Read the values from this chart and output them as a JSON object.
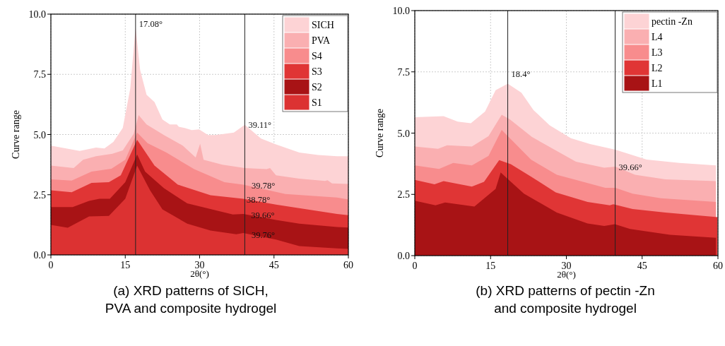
{
  "chart_data": [
    {
      "type": "area",
      "title": "(a) XRD patterns of SICH,\nPVA and composite hydrogel",
      "xlabel": "2θ(°)",
      "ylabel": "Curve range",
      "xlim": [
        0,
        60
      ],
      "ylim": [
        0,
        10
      ],
      "xticks": [
        0,
        15,
        30,
        45,
        60
      ],
      "yticks": [
        {
          "value": 0,
          "label": "0.0"
        },
        {
          "value": 2.5,
          "label": "2.5"
        },
        {
          "value": 5,
          "label": "5.0"
        },
        {
          "value": 7.5,
          "label": "7.5"
        },
        {
          "value": 10,
          "label": "10.0"
        }
      ],
      "grid": true,
      "legend": "top right",
      "ref_lines": [
        {
          "axis": "x",
          "value": 17.08
        },
        {
          "axis": "x",
          "value": 39.11
        }
      ],
      "annotations": [
        {
          "text": "17.08°",
          "x": 17.08,
          "y": 9.6
        },
        {
          "text": "39.11°",
          "x": 39.11,
          "y": 5.4
        },
        {
          "text": "39.78°",
          "x": 39.78,
          "y": 2.87
        },
        {
          "text": "38.78°",
          "x": 38.78,
          "y": 2.28
        },
        {
          "text": "39.66°",
          "x": 39.66,
          "y": 1.65
        },
        {
          "text": "39.76°",
          "x": 39.76,
          "y": 0.81
        }
      ],
      "series": [
        {
          "name": "SICH",
          "color": "#fdd3d5",
          "x": [
            0,
            5.8,
            9.1,
            10.8,
            12.6,
            14.5,
            16,
            17.08,
            18,
            19.3,
            20.9,
            22.5,
            24,
            25.4,
            25.8,
            27,
            28.4,
            29.9,
            31.7,
            33.2,
            36.9,
            39.11,
            42.4,
            45.4,
            50.1,
            53.9,
            57.7,
            60
          ],
          "values": [
            4.54,
            4.32,
            4.46,
            4.42,
            4.69,
            5.27,
            6.9,
            9.44,
            7.68,
            6.65,
            6.35,
            5.62,
            5.42,
            5.42,
            5.32,
            5.27,
            5.18,
            5.21,
            4.98,
            4.98,
            5.08,
            5.4,
            4.83,
            4.59,
            4.25,
            4.15,
            4.1,
            4.1
          ]
        },
        {
          "name": "PVA",
          "color": "#faafb1",
          "x": [
            0,
            4.6,
            6.5,
            9.1,
            12.4,
            14.5,
            16.7,
            17.7,
            19.3,
            22.8,
            26.6,
            29.2,
            30.1,
            30.8,
            34.6,
            39.1,
            43.5,
            44.2,
            45.4,
            50.1,
            55.3,
            55.8,
            56.7,
            60
          ],
          "values": [
            3.71,
            3.61,
            3.95,
            4.1,
            4.2,
            4.34,
            5.03,
            5.81,
            5.42,
            4.98,
            4.54,
            4.05,
            4.62,
            3.95,
            3.75,
            3.61,
            3.56,
            3.61,
            3.31,
            3.17,
            3.07,
            3.1,
            2.97,
            2.95
          ]
        },
        {
          "name": "S4",
          "color": "#f88c8d",
          "x": [
            0,
            4.2,
            8.2,
            12.2,
            15,
            17.4,
            19.5,
            23.3,
            28.9,
            35,
            38.8,
            47.3,
            57.7,
            60
          ],
          "values": [
            3.14,
            3.09,
            3.46,
            3.58,
            3.95,
            5.08,
            4.64,
            4.25,
            3.56,
            3.02,
            2.92,
            2.53,
            2.38,
            2.3
          ]
        },
        {
          "name": "S3",
          "color": "#e03535",
          "x": [
            0,
            4.2,
            8.2,
            11.7,
            14.1,
            17.4,
            20.9,
            25.6,
            32.2,
            38.8,
            45.4,
            57.7,
            60
          ],
          "values": [
            2.68,
            2.6,
            2.99,
            3.02,
            3.31,
            4.78,
            3.71,
            2.92,
            2.48,
            2.33,
            2.09,
            1.7,
            1.65
          ]
        },
        {
          "name": "S2",
          "color": "#a81315",
          "x": [
            0,
            4.4,
            7.7,
            9.8,
            11.9,
            15,
            17.4,
            19,
            22.8,
            27.5,
            36.7,
            38.8,
            45.4,
            50.1,
            57.7,
            60
          ],
          "values": [
            1.99,
            1.99,
            2.24,
            2.33,
            2.33,
            3.02,
            4.17,
            3.46,
            2.77,
            2.14,
            1.68,
            1.7,
            1.45,
            1.3,
            1.16,
            1.14
          ]
        },
        {
          "name": "S1",
          "color": "#dc3232",
          "x": [
            0,
            3.4,
            7.7,
            11.7,
            15,
            17.4,
            20,
            22.5,
            27.5,
            32.2,
            37.4,
            38.8,
            45.4,
            50.1,
            57.7,
            60
          ],
          "values": [
            1.25,
            1.13,
            1.6,
            1.62,
            2.33,
            3.71,
            2.68,
            1.89,
            1.3,
            1.01,
            0.86,
            0.91,
            0.64,
            0.37,
            0.27,
            0.25
          ]
        }
      ]
    },
    {
      "type": "area",
      "title": "(b) XRD patterns of pectin -Zn\nand composite hydrogel",
      "xlabel": "2θ(°)",
      "ylabel": "Curve range",
      "xlim": [
        0,
        60
      ],
      "ylim": [
        0,
        10
      ],
      "xticks": [
        0,
        15,
        30,
        45,
        60
      ],
      "yticks": [
        {
          "value": 0,
          "label": "0.0"
        },
        {
          "value": 2.5,
          "label": "2.5"
        },
        {
          "value": 5,
          "label": "5.0"
        },
        {
          "value": 7.5,
          "label": "7.5"
        },
        {
          "value": 10,
          "label": "10.0"
        }
      ],
      "grid": true,
      "legend": "top right",
      "ref_lines": [
        {
          "axis": "x",
          "value": 18.4
        },
        {
          "axis": "x",
          "value": 39.66
        }
      ],
      "annotations": [
        {
          "text": "18.4°",
          "x": 18.4,
          "y": 7.4
        },
        {
          "text": "39.66°",
          "x": 39.66,
          "y": 3.6
        }
      ],
      "series": [
        {
          "name": "pectin -Zn",
          "color": "#fdd3d5",
          "x": [
            0,
            5.7,
            8.5,
            11.1,
            13.9,
            16,
            18.4,
            21.1,
            23.5,
            26.7,
            30.9,
            34.7,
            39.7,
            45.9,
            52.4,
            59.6
          ],
          "values": [
            5.65,
            5.69,
            5.47,
            5.4,
            5.88,
            6.75,
            7.02,
            6.65,
            5.94,
            5.32,
            4.79,
            4.55,
            4.32,
            3.92,
            3.78,
            3.68
          ]
        },
        {
          "name": "L4",
          "color": "#faafb1",
          "x": [
            0,
            4.6,
            6.4,
            11.3,
            14.6,
            17.2,
            18.8,
            23.2,
            31.9,
            37.5,
            39.7,
            43.6,
            49.6,
            59.6
          ],
          "values": [
            4.45,
            4.36,
            4.5,
            4.45,
            4.88,
            5.75,
            5.56,
            4.84,
            3.83,
            3.59,
            3.63,
            3.3,
            3.11,
            3.04
          ]
        },
        {
          "name": "L3",
          "color": "#f88c8d",
          "x": [
            0,
            4.8,
            7.6,
            11.3,
            14.6,
            17.2,
            23,
            28.1,
            37.7,
            39.7,
            43.1,
            48.7,
            59.6
          ],
          "values": [
            3.68,
            3.54,
            3.78,
            3.68,
            4.07,
            5.13,
            3.92,
            3.3,
            2.77,
            2.77,
            2.53,
            2.34,
            2.19
          ]
        },
        {
          "name": "L2",
          "color": "#e03535",
          "x": [
            0,
            3.9,
            5.7,
            11.3,
            13.7,
            16.7,
            19,
            23.2,
            27.9,
            34.2,
            38.6,
            39.3,
            43.1,
            49.6,
            59.9
          ],
          "values": [
            3.09,
            2.91,
            3.04,
            2.82,
            3.01,
            3.9,
            3.73,
            3.2,
            2.58,
            2.19,
            2.05,
            2.1,
            1.9,
            1.76,
            1.57
          ]
        },
        {
          "name": "L1",
          "color": "#a81315",
          "x": [
            0,
            4.1,
            6,
            11.8,
            16,
            17,
            21.6,
            28.1,
            34.2,
            37.5,
            39.6,
            42.6,
            50.5,
            59.6
          ],
          "values": [
            2.24,
            2.05,
            2.17,
            2.0,
            2.72,
            3.39,
            2.53,
            1.76,
            1.31,
            1.21,
            1.28,
            1.09,
            0.85,
            0.73
          ]
        }
      ]
    }
  ]
}
